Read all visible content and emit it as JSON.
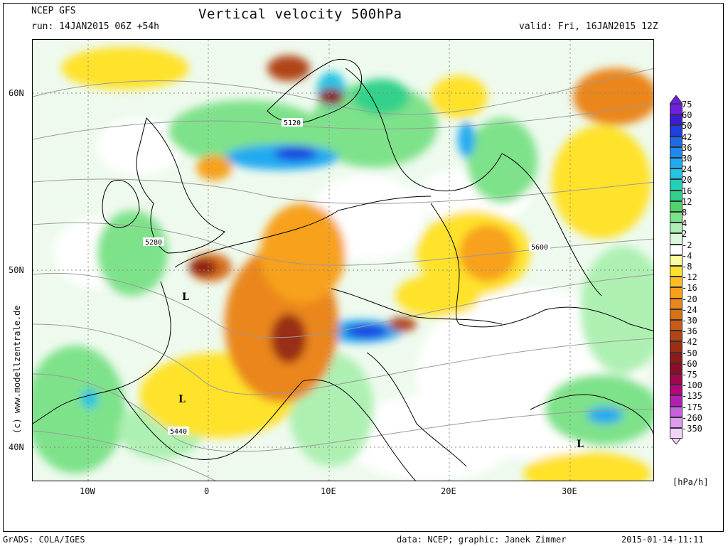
{
  "header": {
    "model": "NCEP GFS",
    "run": "run: 14JAN2015 06Z +54h",
    "title": "Vertical velocity 500hPa",
    "valid": "valid: Fri, 16JAN2015 12Z"
  },
  "lat_labels": [
    "60N",
    "50N",
    "40N"
  ],
  "lon_labels": [
    "10W",
    "0",
    "10E",
    "20E",
    "30E"
  ],
  "contour_labels": [
    "5120",
    "5280",
    "5600",
    "5440"
  ],
  "low_markers": [
    "L",
    "L",
    "L"
  ],
  "legend": {
    "unit": "[hPa/h]",
    "entries": [
      {
        "label": "75",
        "color": "#6f1fe0"
      },
      {
        "label": "60",
        "color": "#3b1dd8"
      },
      {
        "label": "50",
        "color": "#1f3fe0"
      },
      {
        "label": "42",
        "color": "#1e6ae8"
      },
      {
        "label": "36",
        "color": "#1e8af0"
      },
      {
        "label": "30",
        "color": "#22aaf0"
      },
      {
        "label": "24",
        "color": "#23c4e6"
      },
      {
        "label": "20",
        "color": "#25d0b8"
      },
      {
        "label": "16",
        "color": "#30d28a"
      },
      {
        "label": "12",
        "color": "#4ed46a"
      },
      {
        "label": "8",
        "color": "#7ee28a"
      },
      {
        "label": "4",
        "color": "#aef0b2"
      },
      {
        "label": "2",
        "color": "#dcf8dc"
      },
      {
        "label": "-2",
        "color": "#ffffff"
      },
      {
        "label": "-4",
        "color": "#fffaa0"
      },
      {
        "label": "-8",
        "color": "#ffe22a"
      },
      {
        "label": "-12",
        "color": "#ffbf1e"
      },
      {
        "label": "-16",
        "color": "#f7a11a"
      },
      {
        "label": "-20",
        "color": "#ea861a"
      },
      {
        "label": "-24",
        "color": "#d8701a"
      },
      {
        "label": "-30",
        "color": "#c65c18"
      },
      {
        "label": "-36",
        "color": "#b04516"
      },
      {
        "label": "-42",
        "color": "#9a2e14"
      },
      {
        "label": "-50",
        "color": "#8c1a18"
      },
      {
        "label": "-60",
        "color": "#8c0c2c"
      },
      {
        "label": "-75",
        "color": "#a0084e"
      },
      {
        "label": "-100",
        "color": "#b2087c"
      },
      {
        "label": "-135",
        "color": "#b220b2"
      },
      {
        "label": "-175",
        "color": "#c860e0"
      },
      {
        "label": "-260",
        "color": "#de9cf0"
      },
      {
        "label": "-350",
        "color": "#f2d4f8"
      }
    ]
  },
  "footer": {
    "left": "GrADS: COLA/IGES",
    "credit": "data: NCEP; graphic: Janek Zimmer",
    "timestamp": "2015-01-14-11:11"
  },
  "copyright": "(c) www.modellzentrale.de"
}
